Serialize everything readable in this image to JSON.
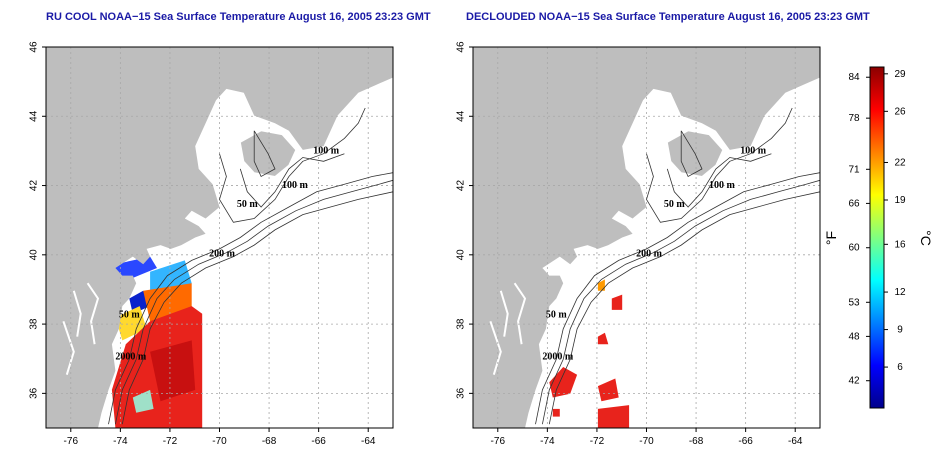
{
  "chart_data": [
    {
      "type": "heatmap",
      "title": "RU COOL NOAA−15 Sea Surface Temperature August 16, 2005 23:23 GMT",
      "x_ticks": [
        "-76",
        "-74",
        "-72",
        "-70",
        "-68",
        "-66",
        "-64"
      ],
      "y_ticks": [
        "36",
        "38",
        "40",
        "42",
        "44",
        "46"
      ],
      "xlim": [
        -77,
        -63
      ],
      "ylim": [
        35,
        46
      ],
      "grid": true,
      "contour_labels": [
        "100 m",
        "100 m",
        "50 m",
        "200 m",
        "50 m",
        "2000 m"
      ]
    },
    {
      "type": "heatmap",
      "title": "DECLOUDED NOAA−15 Sea Surface Temperature August 16, 2005 23:23 GMT",
      "x_ticks": [
        "-76",
        "-74",
        "-72",
        "-70",
        "-68",
        "-66",
        "-64"
      ],
      "y_ticks": [
        "36",
        "38",
        "40",
        "42",
        "44",
        "46"
      ],
      "xlim": [
        -77,
        -63
      ],
      "ylim": [
        35,
        46
      ],
      "grid": true,
      "contour_labels": [
        "100 m",
        "100 m",
        "50 m",
        "200 m",
        "50 m",
        "2000 m"
      ]
    }
  ],
  "colorbar": {
    "fahrenheit_ticks": [
      "84",
      "78",
      "71",
      "66",
      "60",
      "53",
      "48",
      "42"
    ],
    "celsius_ticks": [
      "29",
      "26",
      "22",
      "19",
      "16",
      "12",
      "9",
      "6"
    ],
    "fahrenheit_unit": "°F",
    "celsius_unit": "°C",
    "colors": [
      "#00008b",
      "#0000ff",
      "#0080ff",
      "#00ffff",
      "#80ff80",
      "#ffff00",
      "#ff8000",
      "#ff0000",
      "#8b0000"
    ]
  },
  "colors": {
    "title": "#1a1aa6",
    "land": "#bebebe",
    "sst_warm": "#e8231c",
    "sst_hot": "#c81010"
  }
}
